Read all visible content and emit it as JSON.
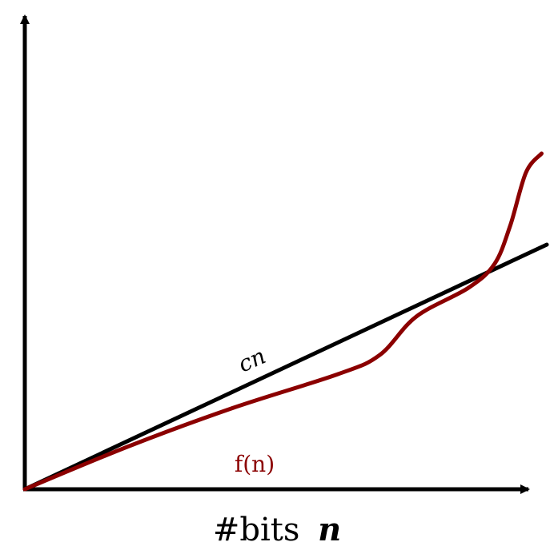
{
  "colors": {
    "axes": "#000000",
    "line_cn": "#000000",
    "curve_fn": "#8b0000",
    "background": "#ffffff"
  },
  "labels": {
    "line_label": "cn",
    "curve_label": "f(n)",
    "x_axis_prefix": "#bits",
    "x_axis_variable": "n"
  },
  "chart_data": {
    "type": "line",
    "x_range": [
      0,
      1
    ],
    "y_range": [
      0,
      1
    ],
    "series": [
      {
        "name": "cn",
        "x": [
          0,
          1
        ],
        "y": [
          0,
          0.51
        ]
      },
      {
        "name": "f(n)",
        "x": [
          0,
          0.2,
          0.4,
          0.6,
          0.68,
          0.75,
          0.85,
          0.9,
          0.93,
          0.96,
          0.99
        ],
        "y": [
          0,
          0.09,
          0.17,
          0.24,
          0.28,
          0.36,
          0.42,
          0.47,
          0.55,
          0.66,
          0.7
        ]
      }
    ],
    "arrowheads": [
      "x-axis",
      "y-axis"
    ]
  }
}
